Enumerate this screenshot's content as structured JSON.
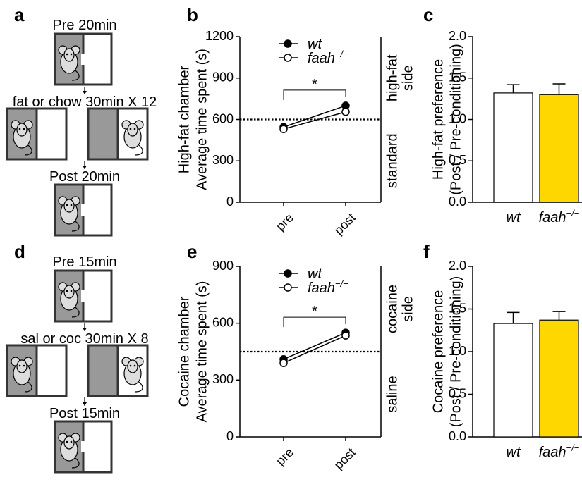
{
  "diagrams": [
    {
      "letter": "a",
      "pre": "Pre 20min",
      "conditioning": "fat or chow 30min X 12",
      "post": "Post 20min"
    },
    {
      "letter": "d",
      "pre": "Pre 15min",
      "conditioning": "sal or coc 30min X 8",
      "post": "Post 15min"
    }
  ],
  "chart_data": [
    {
      "type": "line",
      "panel": "b",
      "ylabel": [
        "High-fat chamber",
        "Average time spent  (s)"
      ],
      "categories": [
        "pre",
        "post"
      ],
      "series": [
        {
          "name": "wt",
          "marker": "filled",
          "color": "#000000",
          "values": [
            545,
            700
          ]
        },
        {
          "name": "faah",
          "name_sup": "−/−",
          "marker": "open",
          "color": "#000000",
          "values": [
            530,
            655
          ]
        }
      ],
      "ylim": [
        0,
        1200
      ],
      "yticks": [
        0,
        300,
        600,
        900,
        1200
      ],
      "hline": 600,
      "annotation": "*",
      "right_labels": {
        "upper": [
          "high-fat",
          "side"
        ],
        "lower": [
          "standard"
        ]
      }
    },
    {
      "type": "bar",
      "panel": "c",
      "ylabel": [
        "High-fat preference",
        "(Post / Pre-conditioning)"
      ],
      "categories": [
        {
          "text": "wt"
        },
        {
          "text": "faah",
          "sup": "−/−"
        }
      ],
      "colors": [
        "#ffffff",
        "#ffd700"
      ],
      "values": [
        1.32,
        1.3
      ],
      "errors": [
        0.1,
        0.13
      ],
      "ylim": [
        0,
        2
      ],
      "yticks": [
        {
          "value": 0,
          "label": "0.0"
        },
        {
          "value": 0.5,
          "label": "0.5"
        },
        {
          "value": 1,
          "label": "1.0"
        },
        {
          "value": 1.5,
          "label": "1.5"
        },
        {
          "value": 2,
          "label": "2.0"
        }
      ]
    },
    {
      "type": "line",
      "panel": "e",
      "ylabel": [
        "Cocaine chamber",
        "Average time spent  (s)"
      ],
      "categories": [
        "pre",
        "post"
      ],
      "series": [
        {
          "name": "wt",
          "marker": "filled",
          "color": "#000000",
          "values": [
            410,
            550
          ]
        },
        {
          "name": "faah",
          "name_sup": "−/−",
          "marker": "open",
          "color": "#000000",
          "values": [
            390,
            535
          ]
        }
      ],
      "ylim": [
        0,
        900
      ],
      "yticks": [
        0,
        300,
        600,
        900
      ],
      "hline": 450,
      "annotation": "*",
      "right_labels": {
        "upper": [
          "cocaine",
          "side"
        ],
        "lower": [
          "saline"
        ]
      }
    },
    {
      "type": "bar",
      "panel": "f",
      "ylabel": [
        "Cocaine preference",
        "(Post / Pre-conditioning)"
      ],
      "categories": [
        {
          "text": "wt"
        },
        {
          "text": "faah",
          "sup": "−/−"
        }
      ],
      "colors": [
        "#ffffff",
        "#ffd700"
      ],
      "values": [
        1.33,
        1.37
      ],
      "errors": [
        0.13,
        0.1
      ],
      "ylim": [
        0,
        2
      ],
      "yticks": [
        {
          "value": 0,
          "label": "0.0"
        },
        {
          "value": 0.5,
          "label": "0.5"
        },
        {
          "value": 1,
          "label": "1.0"
        },
        {
          "value": 1.5,
          "label": "1.5"
        },
        {
          "value": 2,
          "label": "2.0"
        }
      ]
    }
  ]
}
